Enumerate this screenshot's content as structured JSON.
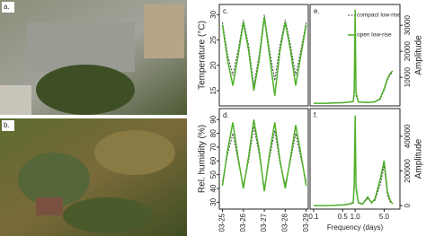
{
  "photos": [
    {
      "label": "a."
    },
    {
      "label": "b."
    }
  ],
  "chart_data": [
    {
      "type": "line",
      "panel": "c.",
      "ylabel": "Temperature (°C)",
      "x": [
        25,
        25.25,
        25.5,
        25.75,
        26,
        26.25,
        26.5,
        26.75,
        27,
        27.25,
        27.5,
        27.75,
        28,
        28.25,
        28.5,
        28.75,
        29
      ],
      "series": [
        {
          "color": "#444444",
          "dash": true,
          "values": [
            28.5,
            22,
            18,
            23,
            29,
            24,
            16,
            22,
            30,
            23,
            17,
            24,
            29,
            24,
            18,
            23,
            28.5
          ]
        },
        {
          "color": "#4fb02a",
          "dash": false,
          "values": [
            28,
            21,
            16,
            22,
            28.5,
            23,
            15,
            21,
            29.5,
            22,
            14,
            23,
            28.5,
            23,
            16,
            22,
            28
          ]
        }
      ],
      "xlim": [
        24.85,
        29.1
      ],
      "ylim": [
        12,
        32
      ],
      "yticks": [
        15,
        20,
        25,
        30
      ],
      "yaxis": "left"
    },
    {
      "type": "line",
      "panel": "d.",
      "ylabel": "Rel. humidity (%)",
      "x": [
        25,
        25.25,
        25.5,
        25.75,
        26,
        26.25,
        26.5,
        26.75,
        27,
        27.25,
        27.5,
        27.75,
        28,
        28.25,
        28.5,
        28.75,
        29
      ],
      "series": [
        {
          "color": "#444444",
          "dash": true,
          "values": [
            45,
            65,
            80,
            60,
            42,
            60,
            85,
            65,
            40,
            62,
            82,
            58,
            43,
            60,
            80,
            62,
            45
          ]
        },
        {
          "color": "#4fb02a",
          "dash": false,
          "values": [
            42,
            68,
            88,
            62,
            40,
            63,
            90,
            68,
            38,
            65,
            88,
            60,
            40,
            62,
            86,
            65,
            42
          ]
        }
      ],
      "xlim": [
        24.85,
        29.1
      ],
      "ylim": [
        25,
        98
      ],
      "xticks": [
        {
          "value": 25,
          "label": "03-25"
        },
        {
          "value": 26,
          "label": "03-26"
        },
        {
          "value": 27,
          "label": "03-27"
        },
        {
          "value": 28,
          "label": "03-28"
        },
        {
          "value": 29,
          "label": "03-29"
        }
      ],
      "xtick_rotation": -90,
      "yticks": [
        30,
        40,
        50,
        60,
        70,
        80,
        90
      ],
      "yaxis": "left"
    },
    {
      "type": "line",
      "panel": "e.",
      "ylabel": "Amplitude",
      "log_x": true,
      "legend": "upper right",
      "x": [
        0.1,
        0.2,
        0.3,
        0.5,
        0.7,
        0.9,
        0.95,
        1.0,
        1.05,
        1.2,
        1.5,
        2.0,
        2.5,
        3.0,
        4.0,
        5.0,
        6.0,
        7.0,
        8.0
      ],
      "series": [
        {
          "name": "compact low-rise",
          "color": "#444444",
          "dash": true,
          "values": [
            0,
            0,
            200,
            300,
            500,
            800,
            3000,
            33000,
            3000,
            600,
            500,
            400,
            400,
            500,
            1500,
            5000,
            9000,
            11000,
            12000
          ]
        },
        {
          "name": "open low-rise",
          "color": "#4fb02a",
          "dash": false,
          "values": [
            0,
            0,
            100,
            200,
            400,
            700,
            4000,
            36000,
            4000,
            500,
            400,
            300,
            400,
            600,
            1800,
            5500,
            9500,
            11500,
            12500
          ]
        }
      ],
      "xlim": [
        0.082,
        12
      ],
      "ylim": [
        -1000,
        38000
      ],
      "yticks": [
        10000,
        20000,
        30000
      ],
      "yaxis": "right"
    },
    {
      "type": "line",
      "panel": "f.",
      "ylabel": "Amplitude",
      "xlabel": "Frequency (days)",
      "log_x": true,
      "x": [
        0.1,
        0.2,
        0.3,
        0.5,
        0.7,
        0.9,
        0.95,
        1.0,
        1.05,
        1.2,
        1.5,
        2.0,
        2.5,
        3.0,
        4.0,
        5.0,
        6.0,
        7.0,
        8.0
      ],
      "series": [
        {
          "color": "#444444",
          "dash": true,
          "values": [
            0,
            0,
            2000,
            5000,
            10000,
            20000,
            100000,
            480000,
            90000,
            20000,
            10000,
            40000,
            20000,
            30000,
            120000,
            230000,
            60000,
            20000,
            10000
          ]
        },
        {
          "color": "#4fb02a",
          "dash": false,
          "values": [
            0,
            0,
            1000,
            4000,
            8000,
            15000,
            120000,
            520000,
            110000,
            15000,
            8000,
            50000,
            15000,
            40000,
            150000,
            260000,
            80000,
            30000,
            10000
          ]
        }
      ],
      "xlim": [
        0.082,
        12
      ],
      "ylim": [
        -20000,
        560000
      ],
      "xticks": [
        0.1,
        0.5,
        {
          "value": 1,
          "label": "1.0"
        },
        {
          "value": 5,
          "label": "5.0"
        }
      ],
      "yticks": [
        0,
        200000,
        400000
      ],
      "yaxis": "right"
    }
  ]
}
